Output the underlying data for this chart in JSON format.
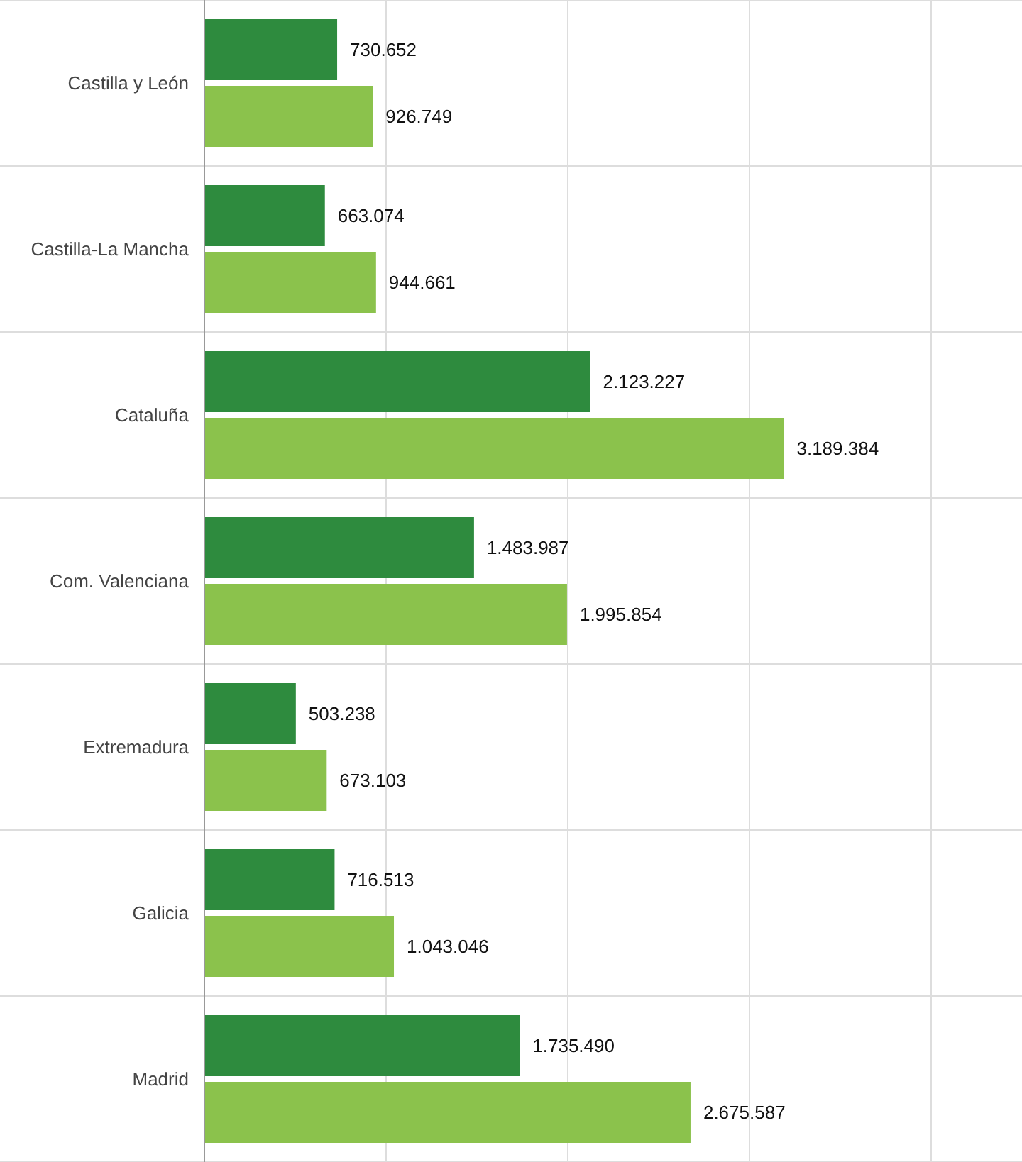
{
  "chart_data": {
    "type": "bar",
    "orientation": "horizontal",
    "categories": [
      "Castilla y León",
      "Castilla-La Mancha",
      "Cataluña",
      "Com. Valenciana",
      "Extremadura",
      "Galicia",
      "Madrid"
    ],
    "series": [
      {
        "color": "#2e8b3e",
        "values": [
          730652,
          663074,
          2123227,
          1483987,
          503238,
          716513,
          1735490
        ],
        "value_labels": [
          "730.652",
          "663.074",
          "2.123.227",
          "1.483.987",
          "503.238",
          "716.513",
          "1.735.490"
        ]
      },
      {
        "color": "#8bc24c",
        "values": [
          926749,
          944661,
          3189384,
          1995854,
          673103,
          1043046,
          2675587
        ],
        "value_labels": [
          "926.749",
          "944.661",
          "3.189.384",
          "1.995.854",
          "673.103",
          "1.043.046",
          "2.675.587"
        ]
      }
    ],
    "xlim": [
      0,
      4500000
    ],
    "xticks": [
      {
        "value": 0,
        "label": null
      },
      {
        "value": 1000000,
        "label": null
      },
      {
        "value": 2000000,
        "label": null
      },
      {
        "value": 3000000,
        "label": null
      },
      {
        "value": 4000000,
        "label": null
      }
    ],
    "grid": true,
    "tick_labels": "y"
  }
}
